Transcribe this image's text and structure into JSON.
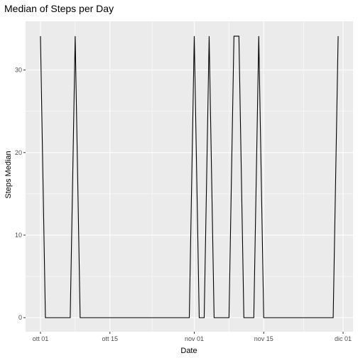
{
  "chart_data": {
    "type": "line",
    "title": "Median of Steps per Day",
    "xlabel": "Date",
    "ylabel": "Steps Median",
    "x_ticks": [
      "2012-10-01",
      "2012-10-15",
      "2012-11-01",
      "2012-11-15",
      "2012-12-01"
    ],
    "x_tick_labels": [
      "ott 01",
      "ott 15",
      "nov 01",
      "nov 15",
      "dic 01"
    ],
    "y_ticks": [
      0,
      10,
      20,
      30
    ],
    "y_tick_labels": [
      "0",
      "10",
      "20",
      "30"
    ],
    "xlim": [
      "2012-09-28",
      "2012-12-03"
    ],
    "ylim": [
      -1.7,
      35.9
    ],
    "grid": true,
    "panel_background": "#ebebeb",
    "grid_major_color": "#ffffff",
    "line_color": "#000000",
    "series": [
      {
        "points": [
          {
            "x": "2012-10-01",
            "y": 34.1
          },
          {
            "x": "2012-10-02",
            "y": 0
          },
          {
            "x": "2012-10-07",
            "y": 0
          },
          {
            "x": "2012-10-08",
            "y": 34.1
          },
          {
            "x": "2012-10-09",
            "y": 0
          },
          {
            "x": "2012-10-31",
            "y": 0
          },
          {
            "x": "2012-11-01",
            "y": 34.1
          },
          {
            "x": "2012-11-02",
            "y": 0
          },
          {
            "x": "2012-11-03",
            "y": 0
          },
          {
            "x": "2012-11-04",
            "y": 34.1
          },
          {
            "x": "2012-11-05",
            "y": 0
          },
          {
            "x": "2012-11-08",
            "y": 0
          },
          {
            "x": "2012-11-09",
            "y": 34.1
          },
          {
            "x": "2012-11-10",
            "y": 34.1
          },
          {
            "x": "2012-11-11",
            "y": 0
          },
          {
            "x": "2012-11-13",
            "y": 0
          },
          {
            "x": "2012-11-14",
            "y": 34.1
          },
          {
            "x": "2012-11-15",
            "y": 0
          },
          {
            "x": "2012-11-29",
            "y": 0
          },
          {
            "x": "2012-11-30",
            "y": 34.1
          }
        ]
      }
    ]
  }
}
